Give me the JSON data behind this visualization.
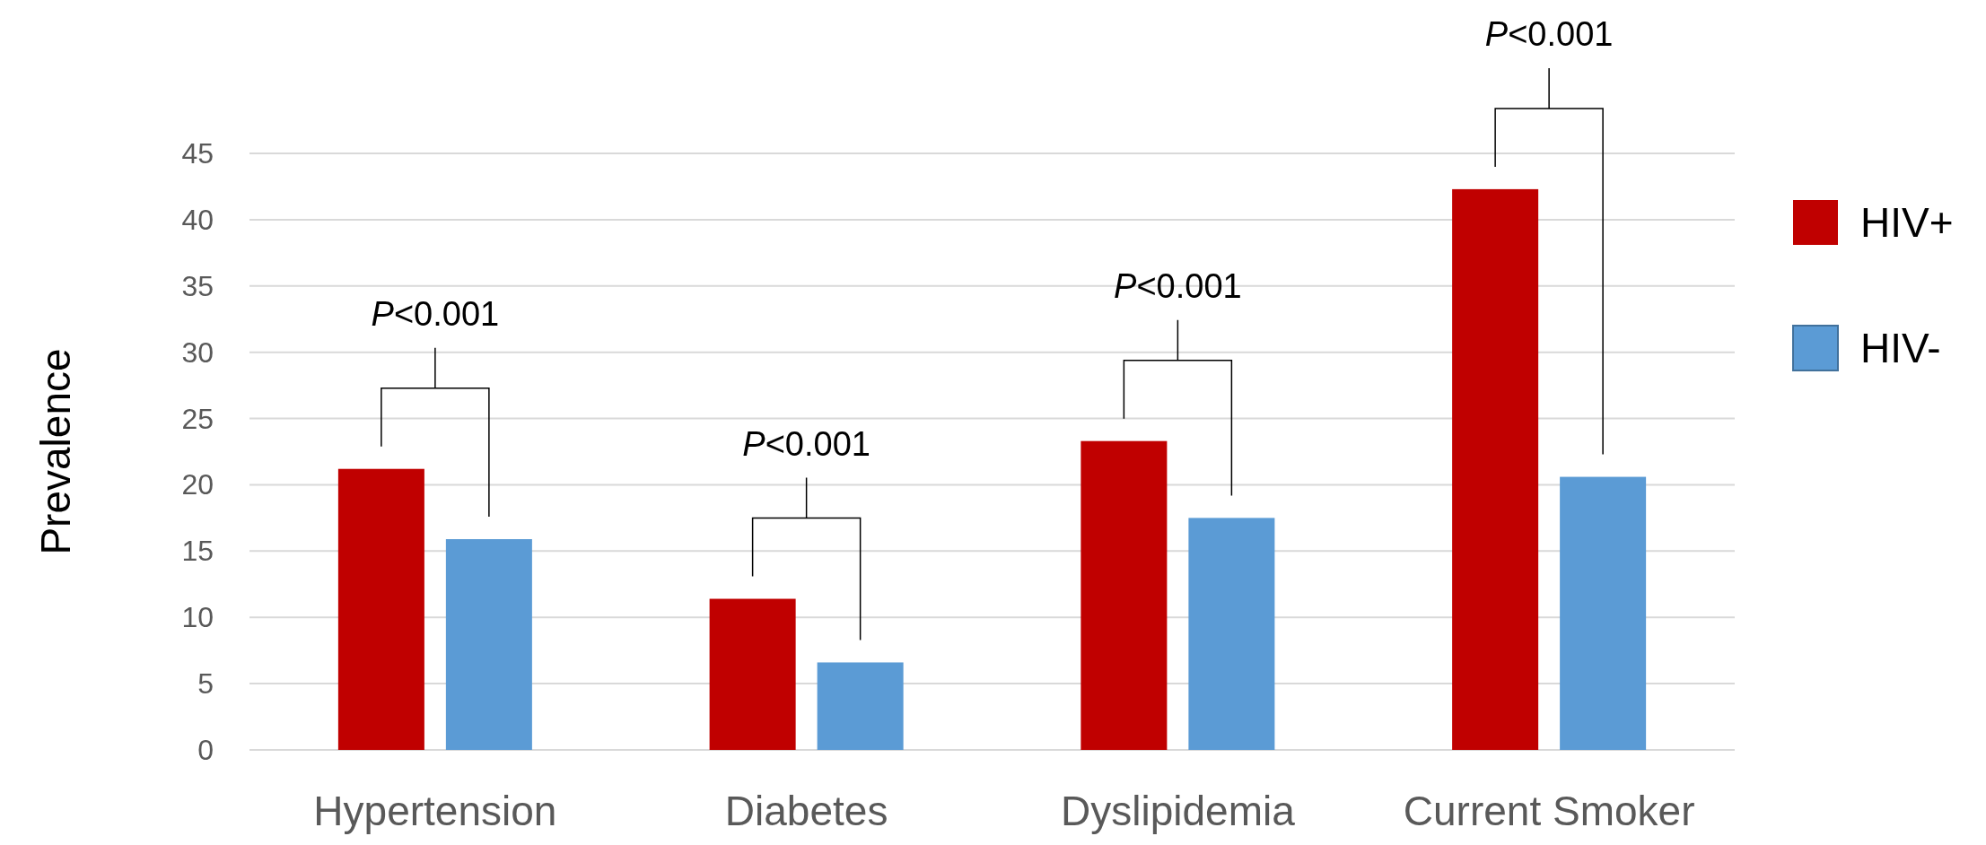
{
  "chart_data": {
    "type": "bar",
    "ylabel": "Prevalence",
    "categories": [
      "Hypertension",
      "Diabetes",
      "Dyslipidemia",
      "Current Smoker"
    ],
    "series": [
      {
        "name": "HIV+",
        "color": "#c00000",
        "values": [
          21.2,
          11.4,
          23.3,
          42.3
        ]
      },
      {
        "name": "HIV-",
        "color": "#5b9bd5",
        "values": [
          15.9,
          6.6,
          17.5,
          20.6
        ]
      }
    ],
    "ylim": [
      0,
      45
    ],
    "yticks": [
      0,
      5,
      10,
      15,
      20,
      25,
      30,
      35,
      40,
      45
    ],
    "grid": "y",
    "legend": "right",
    "annotations": [
      "P<0.001",
      "P<0.001",
      "P<0.001",
      "P<0.001"
    ]
  }
}
